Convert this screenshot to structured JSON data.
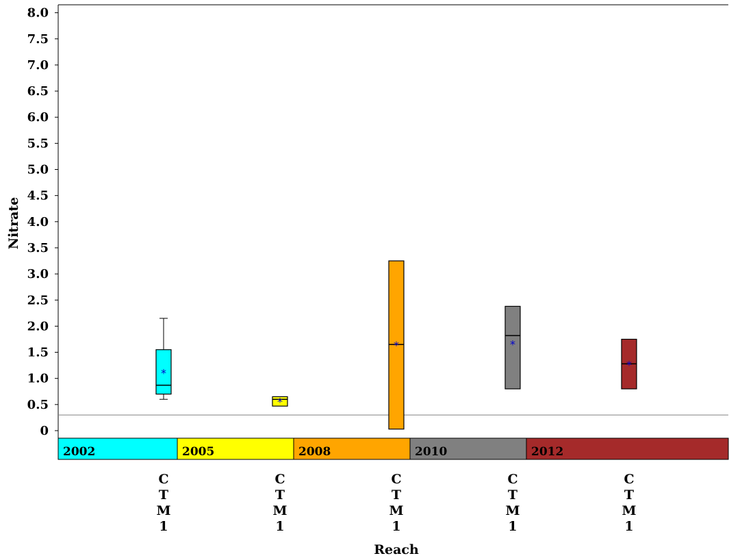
{
  "chart_data": {
    "type": "box",
    "xlabel": "Reach",
    "ylabel": "Nitrate",
    "ylim": [
      0,
      8.1
    ],
    "yticks": [
      "0",
      "0.5",
      "1.0",
      "1.5",
      "2.0",
      "2.5",
      "3.0",
      "3.5",
      "4.0",
      "4.5",
      "5.0",
      "5.5",
      "6.0",
      "6.5",
      "7.0",
      "7.5",
      "8.0"
    ],
    "reference_line": 0.3,
    "colors": {
      "2002": "#00ffff",
      "2005": "#ffff00",
      "2008": "#ffa500",
      "2010": "#808080",
      "2012": "#a52a2a",
      "mean_marker": "#0000cc",
      "reference_line": "#808080"
    },
    "groups": [
      {
        "year": "2002",
        "category": "CTM1",
        "label_chars": [
          "C",
          "T",
          "M",
          "1"
        ],
        "whisker_low": 0.6,
        "q1": 0.7,
        "median": 0.87,
        "q3": 1.55,
        "whisker_high": 2.15,
        "mean": 1.12
      },
      {
        "year": "2005",
        "category": "CTM1",
        "label_chars": [
          "C",
          "T",
          "M",
          "1"
        ],
        "whisker_low": 0.47,
        "q1": 0.47,
        "median": 0.6,
        "q3": 0.65,
        "whisker_high": 0.65,
        "mean": 0.57
      },
      {
        "year": "2008",
        "category": "CTM1",
        "label_chars": [
          "C",
          "T",
          "M",
          "1"
        ],
        "whisker_low": 0.03,
        "q1": 0.03,
        "median": 1.65,
        "q3": 3.25,
        "whisker_high": 3.25,
        "mean": 1.65
      },
      {
        "year": "2010",
        "category": "CTM1",
        "label_chars": [
          "C",
          "T",
          "M",
          "1"
        ],
        "whisker_low": 0.8,
        "q1": 0.8,
        "median": 1.82,
        "q3": 2.38,
        "whisker_high": 2.38,
        "mean": 1.67
      },
      {
        "year": "2012",
        "category": "CTM1",
        "label_chars": [
          "C",
          "T",
          "M",
          "1"
        ],
        "whisker_low": 0.8,
        "q1": 0.8,
        "median": 1.28,
        "q3": 1.75,
        "whisker_high": 1.75,
        "mean": 1.28
      }
    ],
    "mean_symbol": "*"
  }
}
